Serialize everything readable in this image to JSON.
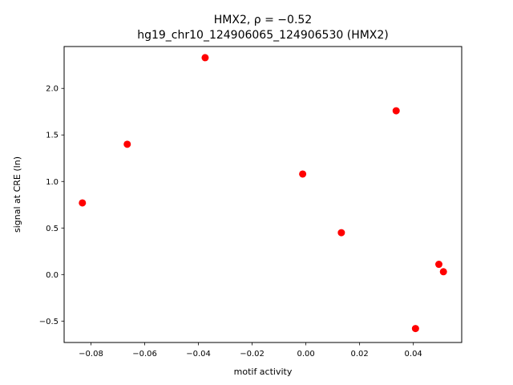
{
  "chart_data": {
    "type": "scatter",
    "title": "HMX2, ρ = −0.52",
    "subtitle": "hg19_chr10_124906065_124906530 (HMX2)",
    "xlabel": "motif activity",
    "ylabel": "signal at CRE (ln)",
    "xlim": [
      -0.09,
      0.058
    ],
    "ylim": [
      -0.73,
      2.45
    ],
    "xticks": [
      -0.08,
      -0.06,
      -0.04,
      -0.02,
      0.0,
      0.02,
      0.04
    ],
    "xtick_labels": [
      "−0.08",
      "−0.06",
      "−0.04",
      "−0.02",
      "0.00",
      "0.02",
      "0.04"
    ],
    "yticks": [
      -0.5,
      0.0,
      0.5,
      1.0,
      1.5,
      2.0
    ],
    "ytick_labels": [
      "−0.5",
      "0.0",
      "0.5",
      "1.0",
      "1.5",
      "2.0"
    ],
    "grid": false,
    "marker_color": "#ff0000",
    "points": [
      {
        "x": -0.0832,
        "y": 0.77
      },
      {
        "x": -0.0665,
        "y": 1.4
      },
      {
        "x": -0.0375,
        "y": 2.33
      },
      {
        "x": -0.0012,
        "y": 1.08
      },
      {
        "x": 0.0132,
        "y": 0.45
      },
      {
        "x": 0.0336,
        "y": 1.76
      },
      {
        "x": 0.0408,
        "y": -0.58
      },
      {
        "x": 0.0495,
        "y": 0.11
      },
      {
        "x": 0.0512,
        "y": 0.03
      }
    ]
  }
}
